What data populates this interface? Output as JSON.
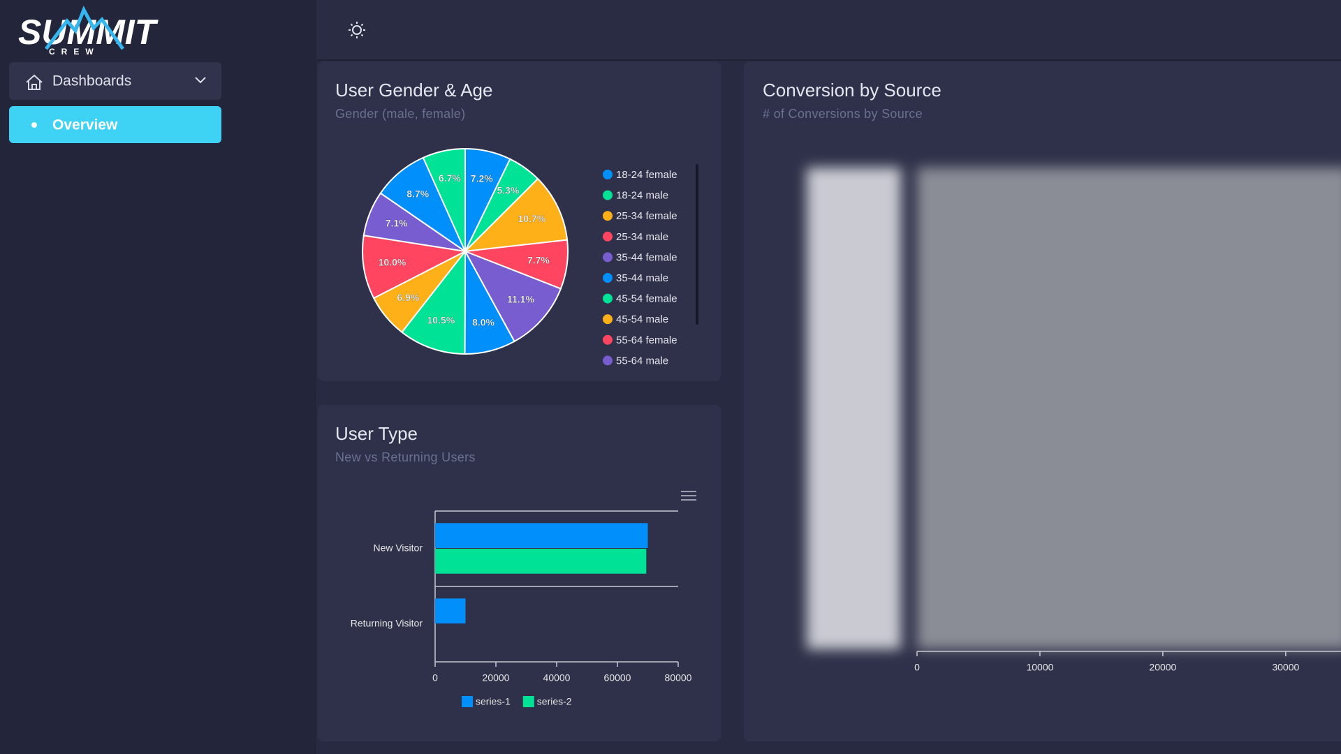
{
  "sidebar": {
    "logo": {
      "title": "SUMMIT",
      "subtitle": "CREW"
    },
    "nav": [
      {
        "label": "Dashboards"
      },
      {
        "label": "Overview"
      }
    ]
  },
  "gender_age": {
    "title": "User Gender & Age",
    "subtitle": "Gender (male, female)",
    "chart_data": {
      "type": "pie",
      "categories": [
        "18-24 female",
        "18-24 male",
        "25-34 female",
        "25-34 male",
        "35-44 female",
        "35-44 male",
        "45-54 female",
        "45-54 male",
        "55-64 female",
        "55-64 male",
        null,
        null
      ],
      "values": [
        7.2,
        5.3,
        10.7,
        7.7,
        11.1,
        8.0,
        10.5,
        6.9,
        10.0,
        7.1,
        8.7,
        6.7
      ],
      "value_labels": [
        "7.2%",
        "5.3%",
        "10.7%",
        "7.7%",
        "11.1%",
        "8.0%",
        "10.5%",
        "6.9%",
        "10.0%",
        "7.1%",
        "8.7%",
        "6.7%"
      ],
      "colors": [
        "#008ffb",
        "#00e396",
        "#feb019",
        "#ff4560",
        "#775dd0",
        "#008ffb",
        "#00e396",
        "#feb019",
        "#ff4560",
        "#775dd0",
        "#008ffb",
        "#00e396"
      ]
    }
  },
  "user_type": {
    "title": "User Type",
    "subtitle": "New vs Returning Users",
    "chart_data": {
      "type": "bar",
      "categories": [
        "New Visitor",
        "Returning Visitor"
      ],
      "series": [
        {
          "name": "series-1",
          "color": "#008ffb",
          "values": [
            70000,
            10000
          ]
        },
        {
          "name": "series-2",
          "color": "#00e396",
          "values": [
            69500,
            null
          ]
        }
      ],
      "xlim": [
        0,
        80000
      ],
      "xticks": [
        0,
        20000,
        40000,
        60000,
        80000
      ]
    }
  },
  "conversion": {
    "title": "Conversion by Source",
    "subtitle": "# of Conversions by Source",
    "chart_data": {
      "type": "bar",
      "xlim": [
        0,
        34500
      ],
      "xticks": [
        0,
        10000,
        20000,
        30000
      ]
    }
  }
}
